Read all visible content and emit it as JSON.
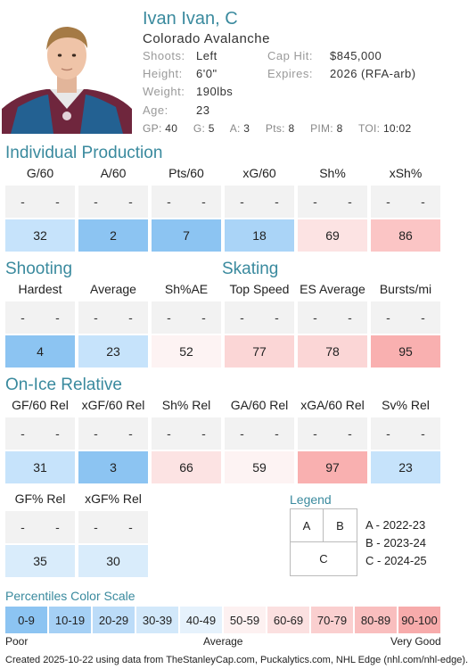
{
  "player": {
    "name": "Ivan Ivan, C",
    "team": "Colorado Avalanche",
    "shoots_label": "Shoots:",
    "shoots": "Left",
    "height_label": "Height:",
    "height": "6'0\"",
    "weight_label": "Weight:",
    "weight": "190lbs",
    "age_label": "Age:",
    "age": "23",
    "caphit_label": "Cap Hit:",
    "caphit": "$845,000",
    "expires_label": "Expires:",
    "expires": "2026 (RFA-arb)"
  },
  "stats": {
    "gp_label": "GP:",
    "gp": "40",
    "g_label": "G:",
    "g": "5",
    "a_label": "A:",
    "a": "3",
    "pts_label": "Pts:",
    "pts": "8",
    "pim_label": "PIM:",
    "pim": "8",
    "toi_label": "TOI:",
    "toi": "10:02"
  },
  "sections": {
    "individual": "Individual Production",
    "shooting": "Shooting",
    "skating": "Skating",
    "onice": "On-Ice Relative"
  },
  "dash": "-",
  "individual": [
    {
      "label": "G/60",
      "value": "32",
      "color": "#c6e3fb"
    },
    {
      "label": "A/60",
      "value": "2",
      "color": "#8cc4f2"
    },
    {
      "label": "Pts/60",
      "value": "7",
      "color": "#8cc4f2"
    },
    {
      "label": "xG/60",
      "value": "18",
      "color": "#aad4f7"
    },
    {
      "label": "Sh%",
      "value": "69",
      "color": "#fce3e3"
    },
    {
      "label": "xSh%",
      "value": "86",
      "color": "#fbc5c5"
    }
  ],
  "shooting_skating": [
    {
      "label": "Hardest",
      "value": "4",
      "color": "#8cc4f2"
    },
    {
      "label": "Average",
      "value": "23",
      "color": "#c6e3fb"
    },
    {
      "label": "Sh%AE",
      "value": "52",
      "color": "#fdf3f3"
    },
    {
      "label": "Top Speed",
      "value": "77",
      "color": "#fbd6d6"
    },
    {
      "label": "ES Average",
      "value": "78",
      "color": "#fbd6d6"
    },
    {
      "label": "Bursts/mi",
      "value": "95",
      "color": "#f9b0b0"
    }
  ],
  "onice": [
    {
      "label": "GF/60 Rel",
      "value": "31",
      "color": "#c6e3fb"
    },
    {
      "label": "xGF/60 Rel",
      "value": "3",
      "color": "#8cc4f2"
    },
    {
      "label": "Sh% Rel",
      "value": "66",
      "color": "#fce3e3"
    },
    {
      "label": "GA/60 Rel",
      "value": "59",
      "color": "#fdf3f3"
    },
    {
      "label": "xGA/60 Rel",
      "value": "97",
      "color": "#f9b0b0"
    },
    {
      "label": "Sv% Rel",
      "value": "23",
      "color": "#c6e3fb"
    }
  ],
  "onice2": [
    {
      "label": "GF% Rel",
      "value": "35",
      "color": "#d9ecfb"
    },
    {
      "label": "xGF% Rel",
      "value": "30",
      "color": "#d9ecfb"
    }
  ],
  "legend": {
    "title": "Legend",
    "a": "A",
    "b": "B",
    "c": "C",
    "a_text": "A - 2022-23",
    "b_text": "B - 2023-24",
    "c_text": "C - 2024-25"
  },
  "scale": {
    "title": "Percentiles Color Scale",
    "bins": [
      {
        "label": "0-9",
        "color": "#8cc4f2"
      },
      {
        "label": "10-19",
        "color": "#a5d0f5"
      },
      {
        "label": "20-29",
        "color": "#bcdcf8"
      },
      {
        "label": "30-39",
        "color": "#d2e8fa"
      },
      {
        "label": "40-49",
        "color": "#e6f2fc"
      },
      {
        "label": "50-59",
        "color": "#fdf1f1"
      },
      {
        "label": "60-69",
        "color": "#fbe0e0"
      },
      {
        "label": "70-79",
        "color": "#facfcf"
      },
      {
        "label": "80-89",
        "color": "#f9bebe"
      },
      {
        "label": "90-100",
        "color": "#f7abab"
      }
    ],
    "poor": "Poor",
    "average": "Average",
    "good": "Very Good"
  },
  "footer": "Created 2025-10-22 using data from TheStanleyCap.com, Puckalytics.com, NHL Edge (nhl.com/nhl-edge)."
}
